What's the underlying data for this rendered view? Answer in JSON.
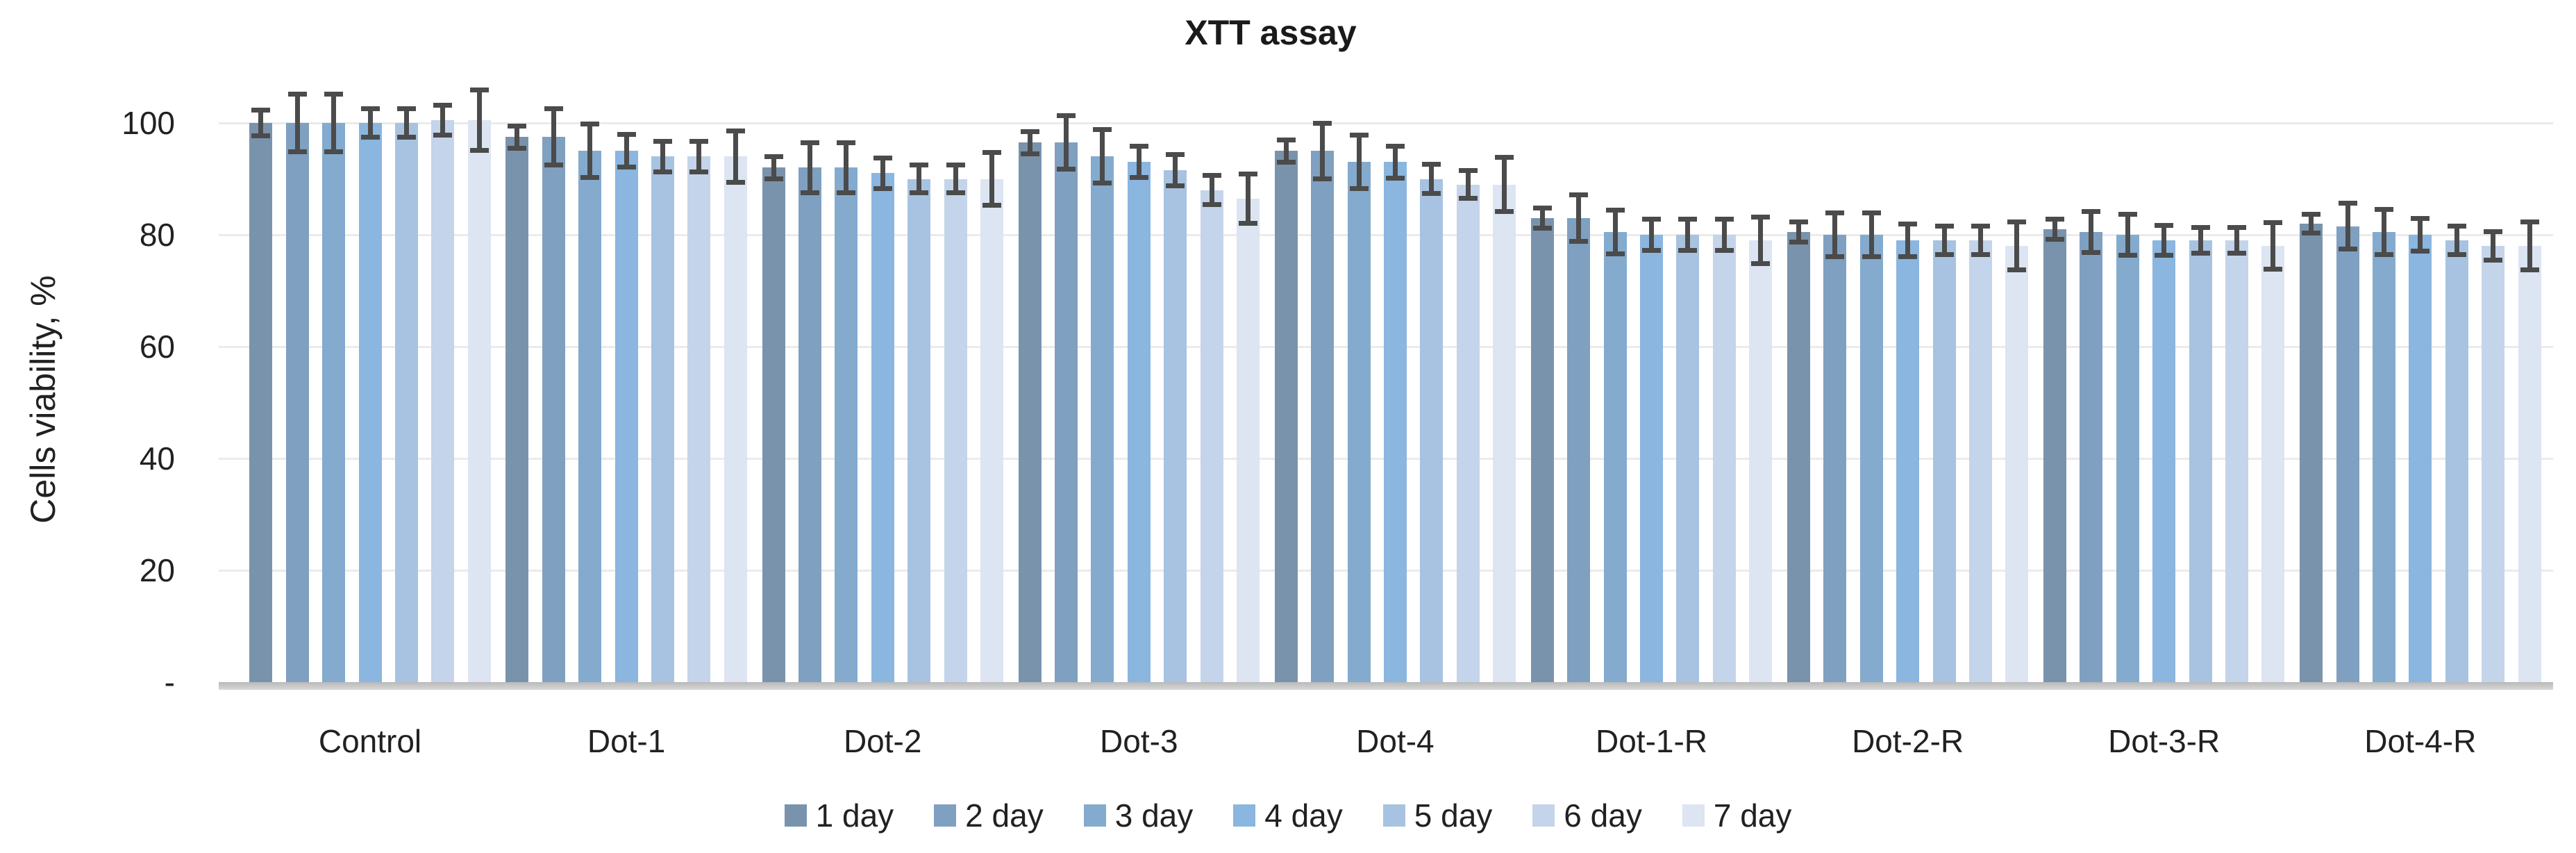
{
  "chart_data": {
    "type": "bar",
    "title": "XTT assay",
    "ylabel": "Cells viability, %",
    "xlabel": "",
    "ylim": [
      0,
      110
    ],
    "grid": true,
    "legend_position": "bottom",
    "axis_color": "#c2c2c2",
    "gridline_color": "#ebebeb",
    "error_bar_color": "#4b4b4b",
    "yticks": [
      {
        "label": "100",
        "value": 100
      },
      {
        "label": "80",
        "value": 80
      },
      {
        "label": "60",
        "value": 60
      },
      {
        "label": "40",
        "value": 40
      },
      {
        "label": "20",
        "value": 20
      },
      {
        "label": "-",
        "value": 0
      }
    ],
    "categories": [
      "Control",
      "Dot-1",
      "Dot-2",
      "Dot-3",
      "Dot-4",
      "Dot-1-R",
      "Dot-2-R",
      "Dot-3-R",
      "Dot-4-R"
    ],
    "series": [
      {
        "name": "1 day",
        "color": "#7a93ac",
        "values": [
          100,
          97.5,
          92,
          96.5,
          95,
          83,
          80.5,
          81,
          82
        ],
        "errors": [
          2.3,
          2,
          2,
          2,
          2,
          1.8,
          1.8,
          1.8,
          1.7
        ]
      },
      {
        "name": "2 day",
        "color": "#7fa0c1",
        "values": [
          100,
          97.5,
          92,
          96.5,
          95,
          83,
          80,
          80.5,
          81.5
        ],
        "errors": [
          5.2,
          5,
          4.5,
          4.8,
          5,
          4.2,
          3.9,
          3.7,
          4.1
        ]
      },
      {
        "name": "3 day",
        "color": "#84abce",
        "values": [
          100,
          95,
          92,
          94,
          93,
          80.5,
          80,
          80,
          80.5
        ],
        "errors": [
          5.2,
          4.8,
          4.5,
          4.8,
          4.8,
          3.9,
          3.9,
          3.7,
          4
        ]
      },
      {
        "name": "4 day",
        "color": "#8ab6e0",
        "values": [
          100,
          95,
          91,
          93,
          93,
          80,
          79,
          79,
          80
        ],
        "errors": [
          2.6,
          2.9,
          2.7,
          2.8,
          2.9,
          2.8,
          2.9,
          2.7,
          2.9
        ]
      },
      {
        "name": "5 day",
        "color": "#a8c3e1",
        "values": [
          100,
          94,
          90,
          91.5,
          90,
          80,
          79,
          79,
          79
        ],
        "errors": [
          2.6,
          2.7,
          2.5,
          2.8,
          2.6,
          2.8,
          2.5,
          2.3,
          2.5
        ]
      },
      {
        "name": "6 day",
        "color": "#c4d4ea",
        "values": [
          100.5,
          94,
          90,
          88,
          89,
          80,
          79,
          79,
          78
        ],
        "errors": [
          2.7,
          2.7,
          2.5,
          2.6,
          2.5,
          2.8,
          2.5,
          2.3,
          2.5
        ]
      },
      {
        "name": "7 day",
        "color": "#dce5f1",
        "values": [
          100.5,
          94,
          90,
          86.5,
          89,
          79,
          78,
          78,
          78
        ],
        "errors": [
          5.4,
          4.6,
          4.7,
          4.4,
          4.9,
          4.2,
          4.3,
          4.2,
          4.3
        ]
      }
    ]
  }
}
